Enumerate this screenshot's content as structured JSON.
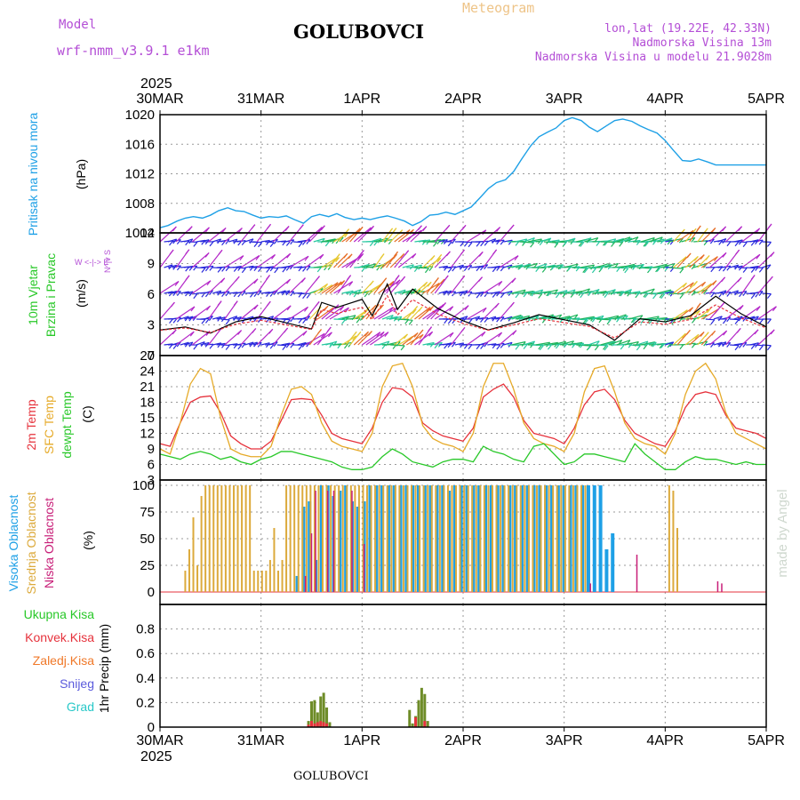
{
  "header": {
    "model_label": "Model",
    "model_name": "wrf-nmm_v3.9.1 e1km",
    "station": "GOLUBOVCI",
    "meteogram": "Meteogram",
    "lonlat": "lon,lat (19.22E, 42.33N)",
    "elevation": "Nadmorska Visina 13m",
    "model_elevation": "Nadmorska Visina u modelu 21.9028m",
    "year": "2025",
    "footer_station": "GOLUBOVCI",
    "watermark": "made by Angel"
  },
  "colors": {
    "pressure": "#1ea0e6",
    "temp2m": "#e6323c",
    "sfc": "#e6aa28",
    "dewpt": "#28c828",
    "high_cloud": "#1ea0e6",
    "mid_cloud": "#dcaa3c",
    "low_cloud": "#c81e78",
    "total_precip": "#6e8c28",
    "conv_precip": "#e6323c",
    "grid": "#999999"
  },
  "chart_data": [
    {
      "type": "line",
      "panel": "pressure",
      "ylabel_1": "Pritisak na nivou mora",
      "ylabel_2": "(hPa)",
      "ylim": [
        1004,
        1020
      ],
      "yticks": [
        1004,
        1008,
        1012,
        1016,
        1020
      ],
      "x_unit": "days since 30MAR",
      "x_ticks": [
        "30MAR",
        "31MAR",
        "1APR",
        "2APR",
        "3APR",
        "4APR",
        "5APR"
      ],
      "grid": true,
      "series": [
        {
          "name": "",
          "x": [
            0,
            0.08,
            0.17,
            0.25,
            0.33,
            0.42,
            0.5,
            0.58,
            0.67,
            0.75,
            0.83,
            0.92,
            1.0,
            1.08,
            1.17,
            1.25,
            1.33,
            1.42,
            1.5,
            1.58,
            1.67,
            1.75,
            1.83,
            1.92,
            2.0,
            2.08,
            2.17,
            2.25,
            2.33,
            2.42,
            2.5,
            2.58,
            2.67,
            2.75,
            2.83,
            2.92,
            3.0,
            3.08,
            3.17,
            3.25,
            3.33,
            3.42,
            3.5,
            3.58,
            3.67,
            3.75,
            3.83,
            3.92,
            4.0,
            4.08,
            4.17,
            4.25,
            4.33,
            4.42,
            4.5,
            4.58,
            4.67,
            4.75,
            4.83,
            4.92,
            5.0,
            5.08,
            5.17,
            5.25,
            5.33,
            5.42,
            5.5,
            5.58,
            5.67,
            5.75,
            5.83,
            5.92,
            6.0
          ],
          "y": [
            1004.7,
            1005.0,
            1005.6,
            1006.0,
            1006.2,
            1006.0,
            1006.4,
            1007.0,
            1007.4,
            1007.0,
            1006.9,
            1006.4,
            1006.0,
            1006.2,
            1006.1,
            1006.3,
            1005.8,
            1005.3,
            1006.2,
            1006.5,
            1006.2,
            1006.6,
            1006.1,
            1005.8,
            1006.0,
            1005.8,
            1006.1,
            1006.3,
            1006.0,
            1005.6,
            1005.0,
            1005.5,
            1006.4,
            1006.5,
            1006.8,
            1006.5,
            1007.0,
            1007.5,
            1008.8,
            1010.0,
            1010.8,
            1011.2,
            1012.3,
            1014.0,
            1015.8,
            1017.0,
            1017.6,
            1018.2,
            1019.2,
            1019.6,
            1019.2,
            1018.3,
            1017.7,
            1018.5,
            1019.2,
            1019.4,
            1019.1,
            1018.5,
            1018.0,
            1017.5,
            1016.5,
            1015.2,
            1013.8,
            1013.7,
            1014.0,
            1013.6,
            1013.2,
            1013.2,
            1013.2,
            1013.2,
            1013.2,
            1013.2,
            1013.2
          ]
        }
      ]
    },
    {
      "type": "line",
      "panel": "wind",
      "ylabel_1": "10m Vjetar",
      "ylabel_2": "Brzina i Pravac",
      "ylabel_3": "(m/s)",
      "compass": "W <-|-> E",
      "compass_v": "N^|v S",
      "ylim": [
        0,
        12
      ],
      "yticks": [
        0,
        3,
        6,
        9,
        12
      ],
      "x": [
        0,
        0.25,
        0.5,
        0.75,
        1.0,
        1.25,
        1.5,
        1.6,
        1.75,
        2.0,
        2.1,
        2.25,
        2.35,
        2.5,
        2.75,
        3.0,
        3.25,
        3.5,
        3.75,
        4.0,
        4.25,
        4.5,
        4.75,
        5.0,
        5.25,
        5.5,
        5.75,
        6.0
      ],
      "y": [
        2.5,
        2.8,
        2.2,
        3.3,
        3.8,
        3.2,
        2.6,
        5.2,
        4.7,
        5.5,
        3.9,
        7.0,
        4.5,
        6.5,
        4.6,
        3.4,
        2.5,
        3.2,
        4.0,
        3.5,
        3.0,
        1.5,
        3.6,
        3.3,
        3.9,
        5.8,
        4.1,
        2.8
      ],
      "series": [
        {
          "name": "speed",
          "color": "#000000"
        },
        {
          "name": "gust",
          "color": "#e6323c"
        }
      ]
    },
    {
      "type": "line",
      "panel": "temperature",
      "ylabel_1": "2m Temp",
      "ylabel_2": "SFC Temp",
      "ylabel_3": "dewpt Temp",
      "ylabel_4": "(C)",
      "ylim": [
        3,
        27
      ],
      "yticks": [
        3,
        6,
        9,
        12,
        15,
        18,
        21,
        24,
        27
      ],
      "x": [
        0,
        0.1,
        0.2,
        0.3,
        0.4,
        0.5,
        0.6,
        0.7,
        0.8,
        0.9,
        1.0,
        1.1,
        1.2,
        1.3,
        1.4,
        1.5,
        1.6,
        1.7,
        1.8,
        1.9,
        2.0,
        2.1,
        2.2,
        2.3,
        2.4,
        2.5,
        2.6,
        2.7,
        2.8,
        2.9,
        3.0,
        3.1,
        3.2,
        3.3,
        3.4,
        3.5,
        3.6,
        3.7,
        3.8,
        3.9,
        4.0,
        4.1,
        4.2,
        4.3,
        4.4,
        4.5,
        4.6,
        4.7,
        4.8,
        4.9,
        5.0,
        5.1,
        5.2,
        5.3,
        5.4,
        5.5,
        5.6,
        5.7,
        5.8,
        5.9,
        6.0
      ],
      "series": [
        {
          "name": "2m Temp",
          "values": [
            10.0,
            9.5,
            14.0,
            18.0,
            19.0,
            19.2,
            16.0,
            11.5,
            10.0,
            9.0,
            9.0,
            10.5,
            14.5,
            18.5,
            18.7,
            18.5,
            15.5,
            12.0,
            11.0,
            10.5,
            10.0,
            13.0,
            18.0,
            20.8,
            20.5,
            19.0,
            14.0,
            12.5,
            11.5,
            11.0,
            10.5,
            13.0,
            19.0,
            20.5,
            21.5,
            19.0,
            14.5,
            12.0,
            11.5,
            11.0,
            10.0,
            13.0,
            17.5,
            20.0,
            20.5,
            18.5,
            14.5,
            12.0,
            11.0,
            10.0,
            9.5,
            12.5,
            17.0,
            19.5,
            20.0,
            19.5,
            15.5,
            13.0,
            12.5,
            12.0,
            11.0
          ]
        },
        {
          "name": "SFC Temp",
          "values": [
            9.0,
            8.0,
            14.0,
            21.5,
            24.5,
            23.5,
            15.0,
            9.0,
            8.0,
            7.5,
            7.5,
            9.5,
            15.5,
            20.5,
            21.0,
            19.5,
            14.0,
            10.5,
            9.5,
            9.0,
            8.5,
            12.0,
            21.0,
            25.0,
            25.5,
            21.0,
            13.5,
            11.0,
            10.0,
            9.5,
            8.5,
            12.0,
            21.0,
            25.5,
            25.5,
            20.5,
            14.0,
            11.0,
            10.0,
            9.5,
            8.5,
            12.0,
            20.0,
            24.5,
            25.0,
            20.0,
            14.0,
            11.0,
            10.0,
            9.5,
            8.0,
            12.0,
            19.5,
            24.0,
            25.5,
            22.5,
            16.0,
            12.0,
            11.0,
            10.0,
            9.0
          ]
        },
        {
          "name": "dewpt Temp",
          "values": [
            8.0,
            7.5,
            7.0,
            8.0,
            8.5,
            8.0,
            7.0,
            7.5,
            6.5,
            6.0,
            7.0,
            7.5,
            8.5,
            8.5,
            8.0,
            7.5,
            7.0,
            6.5,
            5.5,
            5.0,
            5.0,
            5.5,
            7.5,
            9.0,
            8.0,
            6.5,
            6.0,
            5.5,
            6.5,
            7.0,
            7.0,
            6.5,
            9.5,
            8.5,
            8.0,
            7.0,
            6.5,
            9.5,
            10.0,
            8.0,
            6.0,
            6.5,
            8.0,
            8.0,
            7.5,
            7.0,
            6.5,
            10.0,
            8.0,
            6.5,
            5.0,
            5.0,
            6.5,
            7.5,
            7.0,
            7.0,
            6.5,
            6.0,
            6.5,
            6.0,
            6.0
          ]
        }
      ]
    },
    {
      "type": "bar",
      "panel": "cloud",
      "ylabel_1": "Visoka Oblacnost",
      "ylabel_2": "Srednja Oblacnost",
      "ylabel_3": "Niska Oblacnost",
      "ylabel_4": "(%)",
      "ylim": [
        0,
        100
      ],
      "yticks": [
        0,
        25,
        50,
        75,
        100
      ],
      "mid": {
        "x": [
          0.25,
          0.29,
          0.33,
          0.37,
          0.41,
          0.45,
          0.49,
          0.53,
          0.57,
          0.61,
          0.65,
          0.69,
          0.73,
          0.77,
          0.81,
          0.85,
          0.89,
          0.93,
          0.97,
          1.01,
          1.05,
          1.09,
          1.13,
          1.17,
          1.21,
          1.25,
          1.29,
          1.33,
          1.37,
          1.41,
          1.45,
          1.49,
          1.53,
          1.57,
          1.61,
          1.65,
          1.69,
          1.73,
          1.77,
          1.81,
          1.85,
          1.89,
          1.93,
          1.97,
          2.01,
          2.05,
          2.09,
          2.13,
          2.17,
          2.21,
          2.25,
          2.29,
          2.33,
          2.37,
          2.41,
          2.45,
          2.49,
          2.53,
          2.57,
          2.61,
          2.65,
          2.69,
          2.73,
          2.77,
          2.81,
          2.85,
          2.89,
          2.93,
          2.97,
          3.01,
          3.05,
          3.09,
          3.13,
          3.17,
          3.21,
          3.25,
          3.29,
          3.33,
          3.37,
          3.41,
          3.45,
          3.49,
          3.53,
          3.57,
          3.61,
          3.65,
          3.69,
          3.73,
          3.77,
          3.81,
          3.85,
          3.89,
          3.93,
          3.97,
          4.01,
          4.05,
          4.09,
          4.13,
          4.17,
          4.21,
          5.04,
          5.08,
          5.12
        ],
        "values": [
          20,
          40,
          70,
          25,
          90,
          100,
          100,
          100,
          100,
          100,
          100,
          100,
          100,
          100,
          100,
          100,
          100,
          20,
          20,
          20,
          20,
          30,
          60,
          20,
          30,
          100,
          100,
          100,
          100,
          100,
          100,
          100,
          100,
          100,
          100,
          100,
          100,
          100,
          100,
          100,
          100,
          100,
          100,
          100,
          100,
          100,
          100,
          100,
          100,
          100,
          100,
          100,
          100,
          100,
          100,
          100,
          100,
          100,
          100,
          100,
          100,
          100,
          100,
          100,
          100,
          100,
          100,
          100,
          100,
          100,
          100,
          100,
          100,
          100,
          100,
          100,
          100,
          100,
          100,
          100,
          100,
          100,
          100,
          100,
          100,
          100,
          100,
          100,
          100,
          100,
          100,
          100,
          100,
          100,
          100,
          100,
          100,
          100,
          100,
          100,
          100,
          95,
          60
        ]
      },
      "high": {
        "x": [
          1.36,
          1.42,
          1.48,
          1.54,
          1.6,
          1.66,
          1.72,
          1.78,
          1.84,
          1.9,
          1.96,
          2.02,
          2.08,
          2.14,
          2.2,
          2.26,
          2.32,
          2.38,
          2.44,
          2.5,
          2.56,
          2.62,
          2.68,
          2.74,
          2.8,
          2.86,
          2.92,
          2.98,
          3.04,
          3.1,
          3.16,
          3.22,
          3.28,
          3.34,
          3.4,
          3.46,
          3.52,
          3.58,
          3.64,
          3.7,
          3.76,
          3.82,
          3.88,
          3.94,
          4.0,
          4.06,
          4.12,
          4.18,
          4.24,
          4.3,
          4.36,
          4.42,
          4.48
        ],
        "values": [
          15,
          80,
          85,
          30,
          100,
          100,
          90,
          95,
          100,
          85,
          80,
          85,
          100,
          100,
          100,
          100,
          100,
          100,
          100,
          100,
          100,
          100,
          100,
          100,
          100,
          95,
          100,
          100,
          100,
          100,
          100,
          100,
          100,
          100,
          100,
          100,
          100,
          100,
          100,
          100,
          100,
          100,
          100,
          100,
          100,
          100,
          100,
          100,
          100,
          100,
          100,
          40,
          55
        ]
      },
      "low": {
        "x": [
          1.44,
          1.5,
          1.54,
          1.66,
          1.72,
          1.9,
          2.02,
          4.26,
          4.72,
          5.52,
          5.56
        ],
        "values": [
          15,
          55,
          95,
          95,
          95,
          95,
          45,
          8,
          35,
          10,
          8
        ]
      }
    },
    {
      "type": "bar",
      "panel": "precip",
      "ylabel_1": "1hr Precip (mm)",
      "legend": [
        "Ukupna Kisa",
        "Konvek.Kisa",
        "Zaledj.Kisa",
        "Snijeg",
        "Grad"
      ],
      "legend_colors": [
        "#28c828",
        "#e6323c",
        "#f07828",
        "#5a5adc",
        "#28c8c8"
      ],
      "ylim": [
        0,
        1
      ],
      "yticks": [
        0,
        0.2,
        0.4,
        0.6,
        0.8
      ],
      "x": [
        1.47,
        1.5,
        1.53,
        1.56,
        1.59,
        1.62,
        1.65,
        1.68,
        2.47,
        2.5,
        2.53,
        2.56,
        2.59,
        2.62,
        2.65
      ],
      "total": [
        0.05,
        0.21,
        0.22,
        0.12,
        0.25,
        0.28,
        0.16,
        0.04,
        0.14,
        0.03,
        0.09,
        0.22,
        0.32,
        0.27,
        0.05
      ],
      "convective": [
        0.02,
        0.05,
        0.03,
        0.04,
        0.05,
        0.04,
        0.03,
        0.0,
        0.0,
        0.0,
        0.08,
        0.0,
        0.0,
        0.05,
        0.0
      ]
    }
  ]
}
